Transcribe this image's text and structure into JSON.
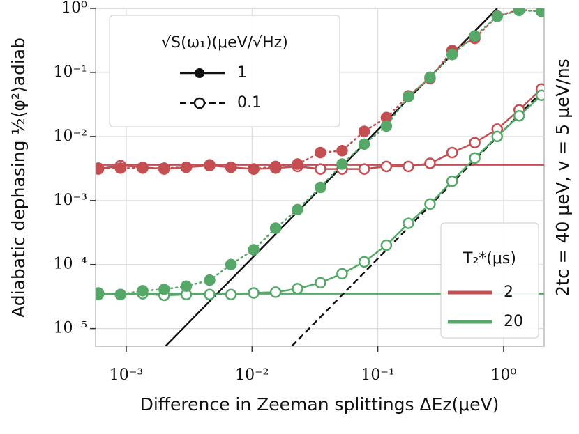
{
  "chart_data": {
    "type": "line",
    "xlabel": "Difference in Zeeman splittings ΔEz(μeV)",
    "ylabel": "Adiabatic dephasing ½⟨φ²⟩adiab",
    "right_label": "2tc = 40 μeV,  v = 5 μeV/ns",
    "xscale": "log",
    "yscale": "log",
    "grid": true,
    "xlim": [
      0.00057,
      2.1
    ],
    "ylim": [
      5.3e-06,
      1
    ],
    "xticks": [
      {
        "value": 0.001,
        "label": "10⁻³"
      },
      {
        "value": 0.01,
        "label": "10⁻²"
      },
      {
        "value": 0.1,
        "label": "10⁻¹"
      },
      {
        "value": 1,
        "label": "10⁰"
      }
    ],
    "yticks": [
      {
        "value": 1e-05,
        "label": "10⁻⁵"
      },
      {
        "value": 0.0001,
        "label": "10⁻⁴"
      },
      {
        "value": 0.001,
        "label": "10⁻³"
      },
      {
        "value": 0.01,
        "label": "10⁻²"
      },
      {
        "value": 0.1,
        "label": "10⁻¹"
      },
      {
        "value": 1,
        "label": "10⁰"
      }
    ],
    "x": [
      0.0006,
      0.0009,
      0.00135,
      0.002,
      0.003,
      0.0046,
      0.0068,
      0.0103,
      0.0154,
      0.023,
      0.035,
      0.052,
      0.078,
      0.117,
      0.175,
      0.26,
      0.39,
      0.59,
      0.89,
      1.33,
      2.0
    ],
    "legends": [
      {
        "title": "√S(ω₁)(μeV/√Hz)",
        "entries": [
          "1",
          "0.1"
        ],
        "corner": "upper left"
      },
      {
        "title": "T₂*(μs)",
        "entries": [
          "2",
          "20"
        ],
        "corner": "lower right"
      }
    ],
    "series": [
      {
        "color": "#c44e52",
        "linestyle": "solid",
        "marker": "none",
        "x": [
          0.00057,
          2.1
        ],
        "values": [
          0.0036,
          0.0036
        ]
      },
      {
        "color": "#55a868",
        "linestyle": "solid",
        "marker": "none",
        "x": [
          0.00057,
          2.1
        ],
        "values": [
          3.5e-05,
          3.5e-05
        ]
      },
      {
        "color": "#111111",
        "linestyle": "solid",
        "marker": "none",
        "x": [
          0.00205,
          0.89
        ],
        "values": [
          5.3e-06,
          1
        ]
      },
      {
        "color": "#111111",
        "linestyle": "dashed",
        "marker": "none",
        "x": [
          0.0207,
          2.0
        ],
        "values": [
          5.3e-06,
          0.0495
        ]
      },
      {
        "color": "#c44e52",
        "linestyle": "solid",
        "marker": "hollow",
        "values": [
          0.0031,
          0.0035,
          0.0033,
          0.0031,
          0.0033,
          0.0035,
          0.0033,
          0.0031,
          0.0032,
          0.0034,
          0.0031,
          0.0031,
          0.0031,
          0.0034,
          0.0034,
          0.0038,
          0.0056,
          0.008,
          0.013,
          0.026,
          0.055
        ]
      },
      {
        "color": "#c44e52",
        "linestyle": "dotted",
        "marker": "filled",
        "values": [
          0.0032,
          0.0032,
          0.0032,
          0.0032,
          0.0033,
          0.0036,
          0.0033,
          0.0031,
          0.0034,
          0.0037,
          0.0056,
          0.006,
          0.012,
          0.0197,
          0.043,
          0.08,
          0.22,
          0.34,
          0.76,
          0.95,
          0.9
        ]
      },
      {
        "color": "#55a868",
        "linestyle": "solid",
        "marker": "hollow",
        "values": [
          3.4e-05,
          3.4e-05,
          3.5e-05,
          3.3e-05,
          3.4e-05,
          3.4e-05,
          3.4e-05,
          3.6e-05,
          3.7e-05,
          4.2e-05,
          5.2e-05,
          7.2e-05,
          0.00011,
          0.0002,
          0.00044,
          0.00088,
          0.002,
          0.0046,
          0.01,
          0.021,
          0.044
        ]
      },
      {
        "color": "#55a868",
        "linestyle": "dotted",
        "marker": "filled",
        "values": [
          3.6e-05,
          3.4e-05,
          3.9e-05,
          4.1e-05,
          4.6e-05,
          5.7e-05,
          0.0001,
          0.00017,
          0.00037,
          0.00072,
          0.0016,
          0.0037,
          0.0076,
          0.0145,
          0.042,
          0.084,
          0.19,
          0.37,
          0.75,
          0.93,
          0.9
        ]
      }
    ]
  }
}
